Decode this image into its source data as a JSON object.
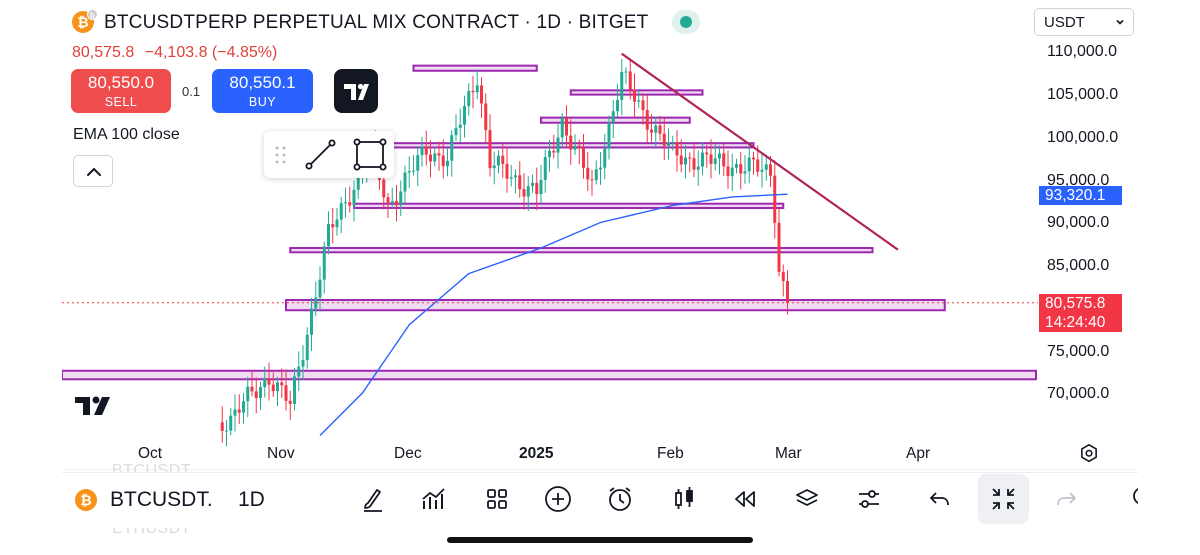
{
  "header": {
    "title": "BTCUSDTPERP PERPETUAL MIX CONTRACT · 1D · BITGET",
    "last": "80,575.8",
    "change": "−4,103.8",
    "change_pct": "(−4.85%)",
    "sell_price": "80,550.0",
    "sell_label": "SELL",
    "spread": "0.1",
    "buy_price": "80,550.1",
    "buy_label": "BUY",
    "indicator": "EMA 100 close"
  },
  "currency_select": {
    "value": "USDT"
  },
  "price_axis": {
    "labels": [
      "110,000.0",
      "105,000.0",
      "100,000.0",
      "95,000.0",
      "90,000.0",
      "85,000.0",
      "75,000.0",
      "70,000.0"
    ],
    "ema_tag": "93,320.1",
    "price_tag": "80,575.8",
    "countdown": "14:24:40"
  },
  "time_axis": {
    "labels": [
      "Oct",
      "Nov",
      "Dec",
      "2025",
      "Feb",
      "Mar",
      "Apr"
    ]
  },
  "watermark_symbols": [
    "BTCUSDT",
    "ETHUSDT"
  ],
  "bottom_bar": {
    "symbol": "BTCUSDT.",
    "timeframe": "1D"
  },
  "colors": {
    "up": "#22ab94",
    "down": "#f23645",
    "ema": "#2962ff",
    "zones": "#9c27b0",
    "trendline": "#b0245a"
  },
  "chart_data": {
    "type": "candlestick",
    "title": "BTCUSDTPERP PERPETUAL MIX CONTRACT · 1D · BITGET",
    "ylim": [
      64000,
      112500
    ],
    "x_ticks": [
      "Oct",
      "Nov",
      "Dec",
      "2025",
      "Feb",
      "Mar",
      "Apr"
    ],
    "series": [
      {
        "name": "EMA 100 close",
        "points": [
          [
            "2024-11-10",
            65000
          ],
          [
            "2024-11-20",
            70000
          ],
          [
            "2024-12-01",
            78000
          ],
          [
            "2024-12-15",
            84000
          ],
          [
            "2025-01-01",
            87000
          ],
          [
            "2025-01-15",
            90000
          ],
          [
            "2025-02-01",
            92000
          ],
          [
            "2025-02-15",
            93000
          ],
          [
            "2025-02-28",
            93320
          ]
        ]
      }
    ],
    "horizontal_zones": [
      {
        "from_date": "2024-12-02",
        "to_date": "2024-12-31",
        "low": 107800,
        "high": 108400
      },
      {
        "from_date": "2025-01-08",
        "to_date": "2025-02-08",
        "low": 105000,
        "high": 105500
      },
      {
        "from_date": "2025-01-01",
        "to_date": "2025-02-05",
        "low": 101700,
        "high": 102300
      },
      {
        "from_date": "2024-11-25",
        "to_date": "2025-02-20",
        "low": 98800,
        "high": 99300
      },
      {
        "from_date": "2024-11-18",
        "to_date": "2025-02-27",
        "low": 91700,
        "high": 92200
      },
      {
        "from_date": "2024-11-03",
        "to_date": "2025-03-20",
        "low": 86500,
        "high": 87000
      },
      {
        "from_date": "2024-11-02",
        "to_date": "2025-04-06",
        "low": 79700,
        "high": 80900
      },
      {
        "from_date": "2024-08-30",
        "to_date": "2025-04-30",
        "low": 71600,
        "high": 72600
      }
    ],
    "trendline": [
      [
        "2025-01-20",
        109800
      ],
      [
        "2025-03-26",
        86800
      ]
    ],
    "candles_sample": [
      {
        "date": "2024-11-05",
        "o": 68500,
        "h": 70500,
        "l": 67000,
        "c": 70000
      },
      {
        "date": "2024-11-11",
        "o": 80000,
        "h": 89000,
        "l": 79500,
        "c": 88500
      },
      {
        "date": "2024-12-05",
        "o": 96000,
        "h": 103000,
        "l": 92000,
        "c": 98000
      },
      {
        "date": "2024-12-17",
        "o": 106000,
        "h": 108300,
        "l": 105000,
        "c": 106100
      },
      {
        "date": "2025-01-20",
        "o": 104000,
        "h": 109800,
        "l": 100000,
        "c": 102000
      },
      {
        "date": "2025-02-24",
        "o": 96000,
        "h": 96500,
        "l": 91000,
        "c": 91500
      },
      {
        "date": "2025-02-26",
        "o": 88000,
        "h": 89500,
        "l": 82500,
        "c": 84500
      },
      {
        "date": "2025-02-28",
        "o": 84679,
        "h": 85000,
        "l": 78200,
        "c": 80575.8
      }
    ],
    "last_price": 80575.8,
    "ema_value": 93320.1
  }
}
